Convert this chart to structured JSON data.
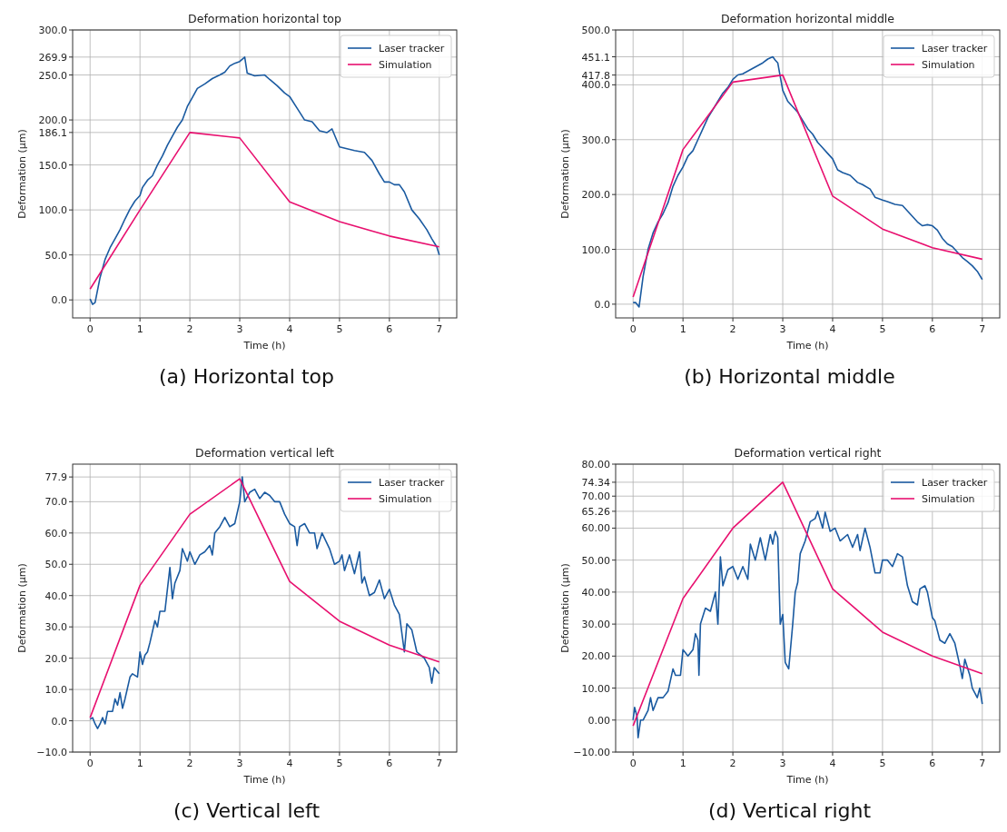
{
  "chart_data": [
    {
      "type": "line",
      "title": "Deformation horizontal top",
      "xlabel": "Time (h)",
      "ylabel": "Deformation (µm)",
      "xlim": [
        -0.35,
        7.35
      ],
      "xticks": [
        0,
        1,
        2,
        3,
        4,
        5,
        6,
        7
      ],
      "ylim": [
        -20,
        300
      ],
      "yticks": [
        {
          "value": 0,
          "label": "0.0"
        },
        {
          "value": 50,
          "label": "50.0"
        },
        {
          "value": 100,
          "label": "100.0"
        },
        {
          "value": 150,
          "label": "150.0"
        },
        {
          "value": 186.1,
          "label": "186.1"
        },
        {
          "value": 200,
          "label": "200.0"
        },
        {
          "value": 250,
          "label": "250.0"
        },
        {
          "value": 269.9,
          "label": "269.9"
        },
        {
          "value": 300,
          "label": "300.0"
        }
      ],
      "grid": true,
      "legend": "top right",
      "annotations": [
        "(a) Horizontal top"
      ],
      "series": [
        {
          "name": "Laser tracker",
          "color": "#1a5aa0",
          "x": [
            0,
            0.05,
            0.1,
            0.2,
            0.3,
            0.4,
            0.5,
            0.6,
            0.7,
            0.8,
            0.9,
            1.0,
            1.05,
            1.15,
            1.25,
            1.35,
            1.45,
            1.55,
            1.65,
            1.75,
            1.85,
            1.95,
            2.05,
            2.15,
            2.3,
            2.45,
            2.6,
            2.7,
            2.8,
            2.9,
            3.0,
            3.1,
            3.15,
            3.3,
            3.5,
            3.6,
            3.75,
            3.9,
            4.0,
            4.15,
            4.3,
            4.45,
            4.6,
            4.75,
            4.85,
            5.0,
            5.15,
            5.3,
            5.5,
            5.65,
            5.8,
            5.9,
            6.0,
            6.1,
            6.2,
            6.3,
            6.45,
            6.6,
            6.75,
            6.85,
            6.95,
            7.0
          ],
          "values": [
            1,
            -5,
            -3,
            25,
            45,
            58,
            68,
            78,
            90,
            101,
            110,
            116,
            125,
            133,
            138,
            150,
            160,
            172,
            182,
            192,
            200,
            215,
            225,
            235,
            240,
            246,
            250,
            253,
            260,
            263,
            265,
            269.9,
            252,
            249,
            250,
            245,
            238,
            230,
            226,
            213,
            200,
            198,
            188,
            186,
            190,
            170,
            168,
            166,
            164,
            155,
            140,
            131,
            131,
            128,
            128,
            120,
            100,
            90,
            78,
            68,
            59,
            50
          ]
        },
        {
          "name": "Simulation",
          "color": "#e8106f",
          "x": [
            0,
            1,
            2,
            3,
            4,
            5,
            6,
            7
          ],
          "values": [
            12,
            100,
            186.1,
            180,
            109,
            87,
            71,
            59
          ]
        }
      ]
    },
    {
      "type": "line",
      "title": "Deformation horizontal middle",
      "xlabel": "Time (h)",
      "ylabel": "Deformation (µm)",
      "xlim": [
        -0.35,
        7.35
      ],
      "xticks": [
        0,
        1,
        2,
        3,
        4,
        5,
        6,
        7
      ],
      "ylim": [
        -25,
        500
      ],
      "yticks": [
        {
          "value": 0,
          "label": "0.0"
        },
        {
          "value": 100,
          "label": "100.0"
        },
        {
          "value": 200,
          "label": "200.0"
        },
        {
          "value": 300,
          "label": "300.0"
        },
        {
          "value": 400,
          "label": "400.0"
        },
        {
          "value": 417.8,
          "label": "417.8"
        },
        {
          "value": 451.1,
          "label": "451.1"
        },
        {
          "value": 500,
          "label": "500.0"
        }
      ],
      "grid": true,
      "legend": "top right",
      "annotations": [
        "(b) Horizontal middle"
      ],
      "series": [
        {
          "name": "Laser tracker",
          "color": "#1a5aa0",
          "x": [
            0,
            0.05,
            0.12,
            0.2,
            0.3,
            0.4,
            0.5,
            0.6,
            0.7,
            0.8,
            0.9,
            1.0,
            1.1,
            1.2,
            1.3,
            1.4,
            1.5,
            1.6,
            1.7,
            1.8,
            1.9,
            2.0,
            2.1,
            2.2,
            2.3,
            2.4,
            2.5,
            2.6,
            2.7,
            2.8,
            2.85,
            2.9,
            2.95,
            3.0,
            3.1,
            3.2,
            3.3,
            3.4,
            3.5,
            3.6,
            3.7,
            3.8,
            3.9,
            4.0,
            4.1,
            4.2,
            4.35,
            4.5,
            4.6,
            4.75,
            4.85,
            5.0,
            5.1,
            5.25,
            5.4,
            5.5,
            5.6,
            5.7,
            5.8,
            5.9,
            6.0,
            6.1,
            6.2,
            6.3,
            6.4,
            6.5,
            6.6,
            6.7,
            6.8,
            6.9,
            7.0
          ],
          "values": [
            3,
            3,
            -5,
            50,
            100,
            130,
            150,
            165,
            185,
            215,
            235,
            250,
            270,
            280,
            300,
            320,
            340,
            355,
            370,
            385,
            395,
            410,
            418,
            420,
            425,
            430,
            435,
            440,
            447,
            451.1,
            445,
            440,
            415,
            390,
            370,
            360,
            350,
            335,
            320,
            310,
            295,
            285,
            275,
            265,
            245,
            240,
            235,
            222,
            218,
            210,
            195,
            190,
            187,
            182,
            180,
            170,
            160,
            150,
            143,
            145,
            143,
            135,
            120,
            110,
            105,
            95,
            85,
            78,
            70,
            60,
            45
          ]
        },
        {
          "name": "Simulation",
          "color": "#e8106f",
          "x": [
            0,
            1,
            2,
            3,
            4,
            5,
            6,
            7
          ],
          "values": [
            13,
            282,
            405,
            417.8,
            197,
            137,
            103,
            82
          ]
        }
      ]
    },
    {
      "type": "line",
      "title": "Deformation vertical left",
      "xlabel": "Time (h)",
      "ylabel": "Deformation (µm)",
      "xlim": [
        -0.35,
        7.35
      ],
      "xticks": [
        0,
        1,
        2,
        3,
        4,
        5,
        6,
        7
      ],
      "ylim": [
        -10,
        82
      ],
      "yticks": [
        {
          "value": -10,
          "label": "−10.0"
        },
        {
          "value": 0,
          "label": "0.0"
        },
        {
          "value": 10,
          "label": "10.0"
        },
        {
          "value": 20,
          "label": "20.0"
        },
        {
          "value": 30,
          "label": "30.0"
        },
        {
          "value": 40,
          "label": "40.0"
        },
        {
          "value": 50,
          "label": "50.0"
        },
        {
          "value": 60,
          "label": "60.0"
        },
        {
          "value": 70,
          "label": "70.0"
        },
        {
          "value": 77.9,
          "label": "77.9"
        }
      ],
      "grid": true,
      "legend": "top right",
      "annotations": [
        "(c) Vertical left"
      ],
      "series": [
        {
          "name": "Laser tracker",
          "color": "#1a5aa0",
          "x": [
            0,
            0.05,
            0.1,
            0.15,
            0.2,
            0.25,
            0.3,
            0.35,
            0.45,
            0.5,
            0.55,
            0.6,
            0.65,
            0.7,
            0.8,
            0.85,
            0.95,
            1.0,
            1.05,
            1.1,
            1.15,
            1.2,
            1.3,
            1.35,
            1.4,
            1.5,
            1.6,
            1.65,
            1.7,
            1.8,
            1.85,
            1.95,
            2.0,
            2.1,
            2.2,
            2.3,
            2.4,
            2.45,
            2.5,
            2.6,
            2.7,
            2.8,
            2.9,
            3.0,
            3.05,
            3.1,
            3.2,
            3.3,
            3.4,
            3.5,
            3.6,
            3.7,
            3.8,
            3.9,
            4.0,
            4.1,
            4.15,
            4.2,
            4.3,
            4.4,
            4.5,
            4.55,
            4.65,
            4.8,
            4.9,
            5.0,
            5.05,
            5.1,
            5.2,
            5.3,
            5.4,
            5.45,
            5.5,
            5.6,
            5.7,
            5.8,
            5.9,
            6.0,
            6.1,
            6.2,
            6.3,
            6.35,
            6.45,
            6.55,
            6.7,
            6.8,
            6.85,
            6.9,
            7.0
          ],
          "values": [
            0.5,
            1,
            -1,
            -2.5,
            -1,
            1,
            -1,
            3,
            3,
            7,
            5,
            9,
            4,
            7,
            14,
            15,
            14,
            22,
            18,
            21,
            22,
            25,
            32,
            30,
            35,
            35,
            49,
            39,
            44,
            48,
            55,
            51,
            54,
            50,
            53,
            54,
            56,
            53,
            60,
            62,
            65,
            62,
            63,
            70,
            77.9,
            70,
            73,
            74,
            71,
            73,
            72,
            70,
            70,
            66,
            63,
            62,
            56,
            62,
            63,
            60,
            60,
            55,
            60,
            55,
            50,
            51,
            53,
            48,
            53,
            47,
            54,
            44,
            46,
            40,
            41,
            45,
            39,
            42,
            37,
            34,
            22,
            31,
            29,
            22,
            20,
            17,
            12,
            17,
            15
          ]
        },
        {
          "name": "Simulation",
          "color": "#e8106f",
          "x": [
            0,
            1,
            2,
            3,
            4,
            5,
            6,
            7
          ],
          "values": [
            1,
            43.3,
            66,
            77.3,
            44.5,
            31.8,
            24.2,
            18.8
          ]
        }
      ]
    },
    {
      "type": "line",
      "title": "Deformation vertical right",
      "xlabel": "Time (h)",
      "ylabel": "Deformation (µm)",
      "xlim": [
        -0.35,
        7.35
      ],
      "xticks": [
        0,
        1,
        2,
        3,
        4,
        5,
        6,
        7
      ],
      "ylim": [
        -10,
        80
      ],
      "yticks": [
        {
          "value": -10,
          "label": "−10.00"
        },
        {
          "value": 0,
          "label": "0.00"
        },
        {
          "value": 10,
          "label": "10.00"
        },
        {
          "value": 20,
          "label": "20.00"
        },
        {
          "value": 30,
          "label": "30.00"
        },
        {
          "value": 40,
          "label": "40.00"
        },
        {
          "value": 50,
          "label": "50.00"
        },
        {
          "value": 60,
          "label": "60.00"
        },
        {
          "value": 65.26,
          "label": "65.26"
        },
        {
          "value": 70,
          "label": "70.00"
        },
        {
          "value": 74.34,
          "label": "74.34"
        },
        {
          "value": 80,
          "label": "80.00"
        }
      ],
      "grid": true,
      "legend": "top right",
      "annotations": [
        "(d) Vertical right"
      ],
      "series": [
        {
          "name": "Laser tracker",
          "color": "#1a5aa0",
          "x": [
            0,
            0.03,
            0.08,
            0.1,
            0.15,
            0.2,
            0.3,
            0.35,
            0.4,
            0.5,
            0.6,
            0.7,
            0.8,
            0.85,
            0.95,
            1.0,
            1.1,
            1.2,
            1.25,
            1.3,
            1.32,
            1.35,
            1.45,
            1.55,
            1.65,
            1.7,
            1.75,
            1.8,
            1.9,
            2.0,
            2.1,
            2.2,
            2.3,
            2.35,
            2.45,
            2.55,
            2.65,
            2.75,
            2.8,
            2.85,
            2.9,
            2.95,
            3.0,
            3.05,
            3.12,
            3.2,
            3.25,
            3.3,
            3.35,
            3.45,
            3.55,
            3.65,
            3.7,
            3.8,
            3.85,
            3.95,
            4.05,
            4.15,
            4.3,
            4.4,
            4.5,
            4.55,
            4.65,
            4.75,
            4.85,
            4.95,
            5.0,
            5.1,
            5.2,
            5.3,
            5.4,
            5.5,
            5.6,
            5.7,
            5.75,
            5.85,
            5.9,
            6.0,
            6.05,
            6.15,
            6.25,
            6.35,
            6.45,
            6.55,
            6.6,
            6.65,
            6.75,
            6.8,
            6.9,
            6.95,
            7.0
          ],
          "values": [
            0,
            4,
            1,
            -5.5,
            0,
            0,
            3,
            7,
            3,
            7,
            7,
            9,
            16,
            14,
            14,
            22,
            20,
            22,
            27,
            25,
            14,
            30,
            35,
            34,
            40,
            30,
            51,
            42,
            47,
            48,
            44,
            48,
            44,
            55,
            50,
            57,
            50,
            58,
            55,
            59,
            57,
            30,
            33,
            18,
            16,
            30,
            40,
            43,
            52,
            56,
            62,
            63,
            65.26,
            60,
            65,
            59,
            60,
            56,
            58,
            54,
            58,
            53,
            60,
            54,
            46,
            46,
            50,
            50,
            48,
            52,
            51,
            42,
            37,
            36,
            41,
            42,
            40,
            32,
            31,
            25,
            24,
            27,
            24,
            17,
            13,
            19,
            14,
            10,
            7,
            10,
            5
          ]
        },
        {
          "name": "Simulation",
          "color": "#e8106f",
          "x": [
            0,
            1,
            2,
            3,
            4,
            5,
            6,
            7
          ],
          "values": [
            -1.8,
            38,
            60,
            74.34,
            41,
            27.5,
            20,
            14.5
          ]
        }
      ]
    }
  ]
}
